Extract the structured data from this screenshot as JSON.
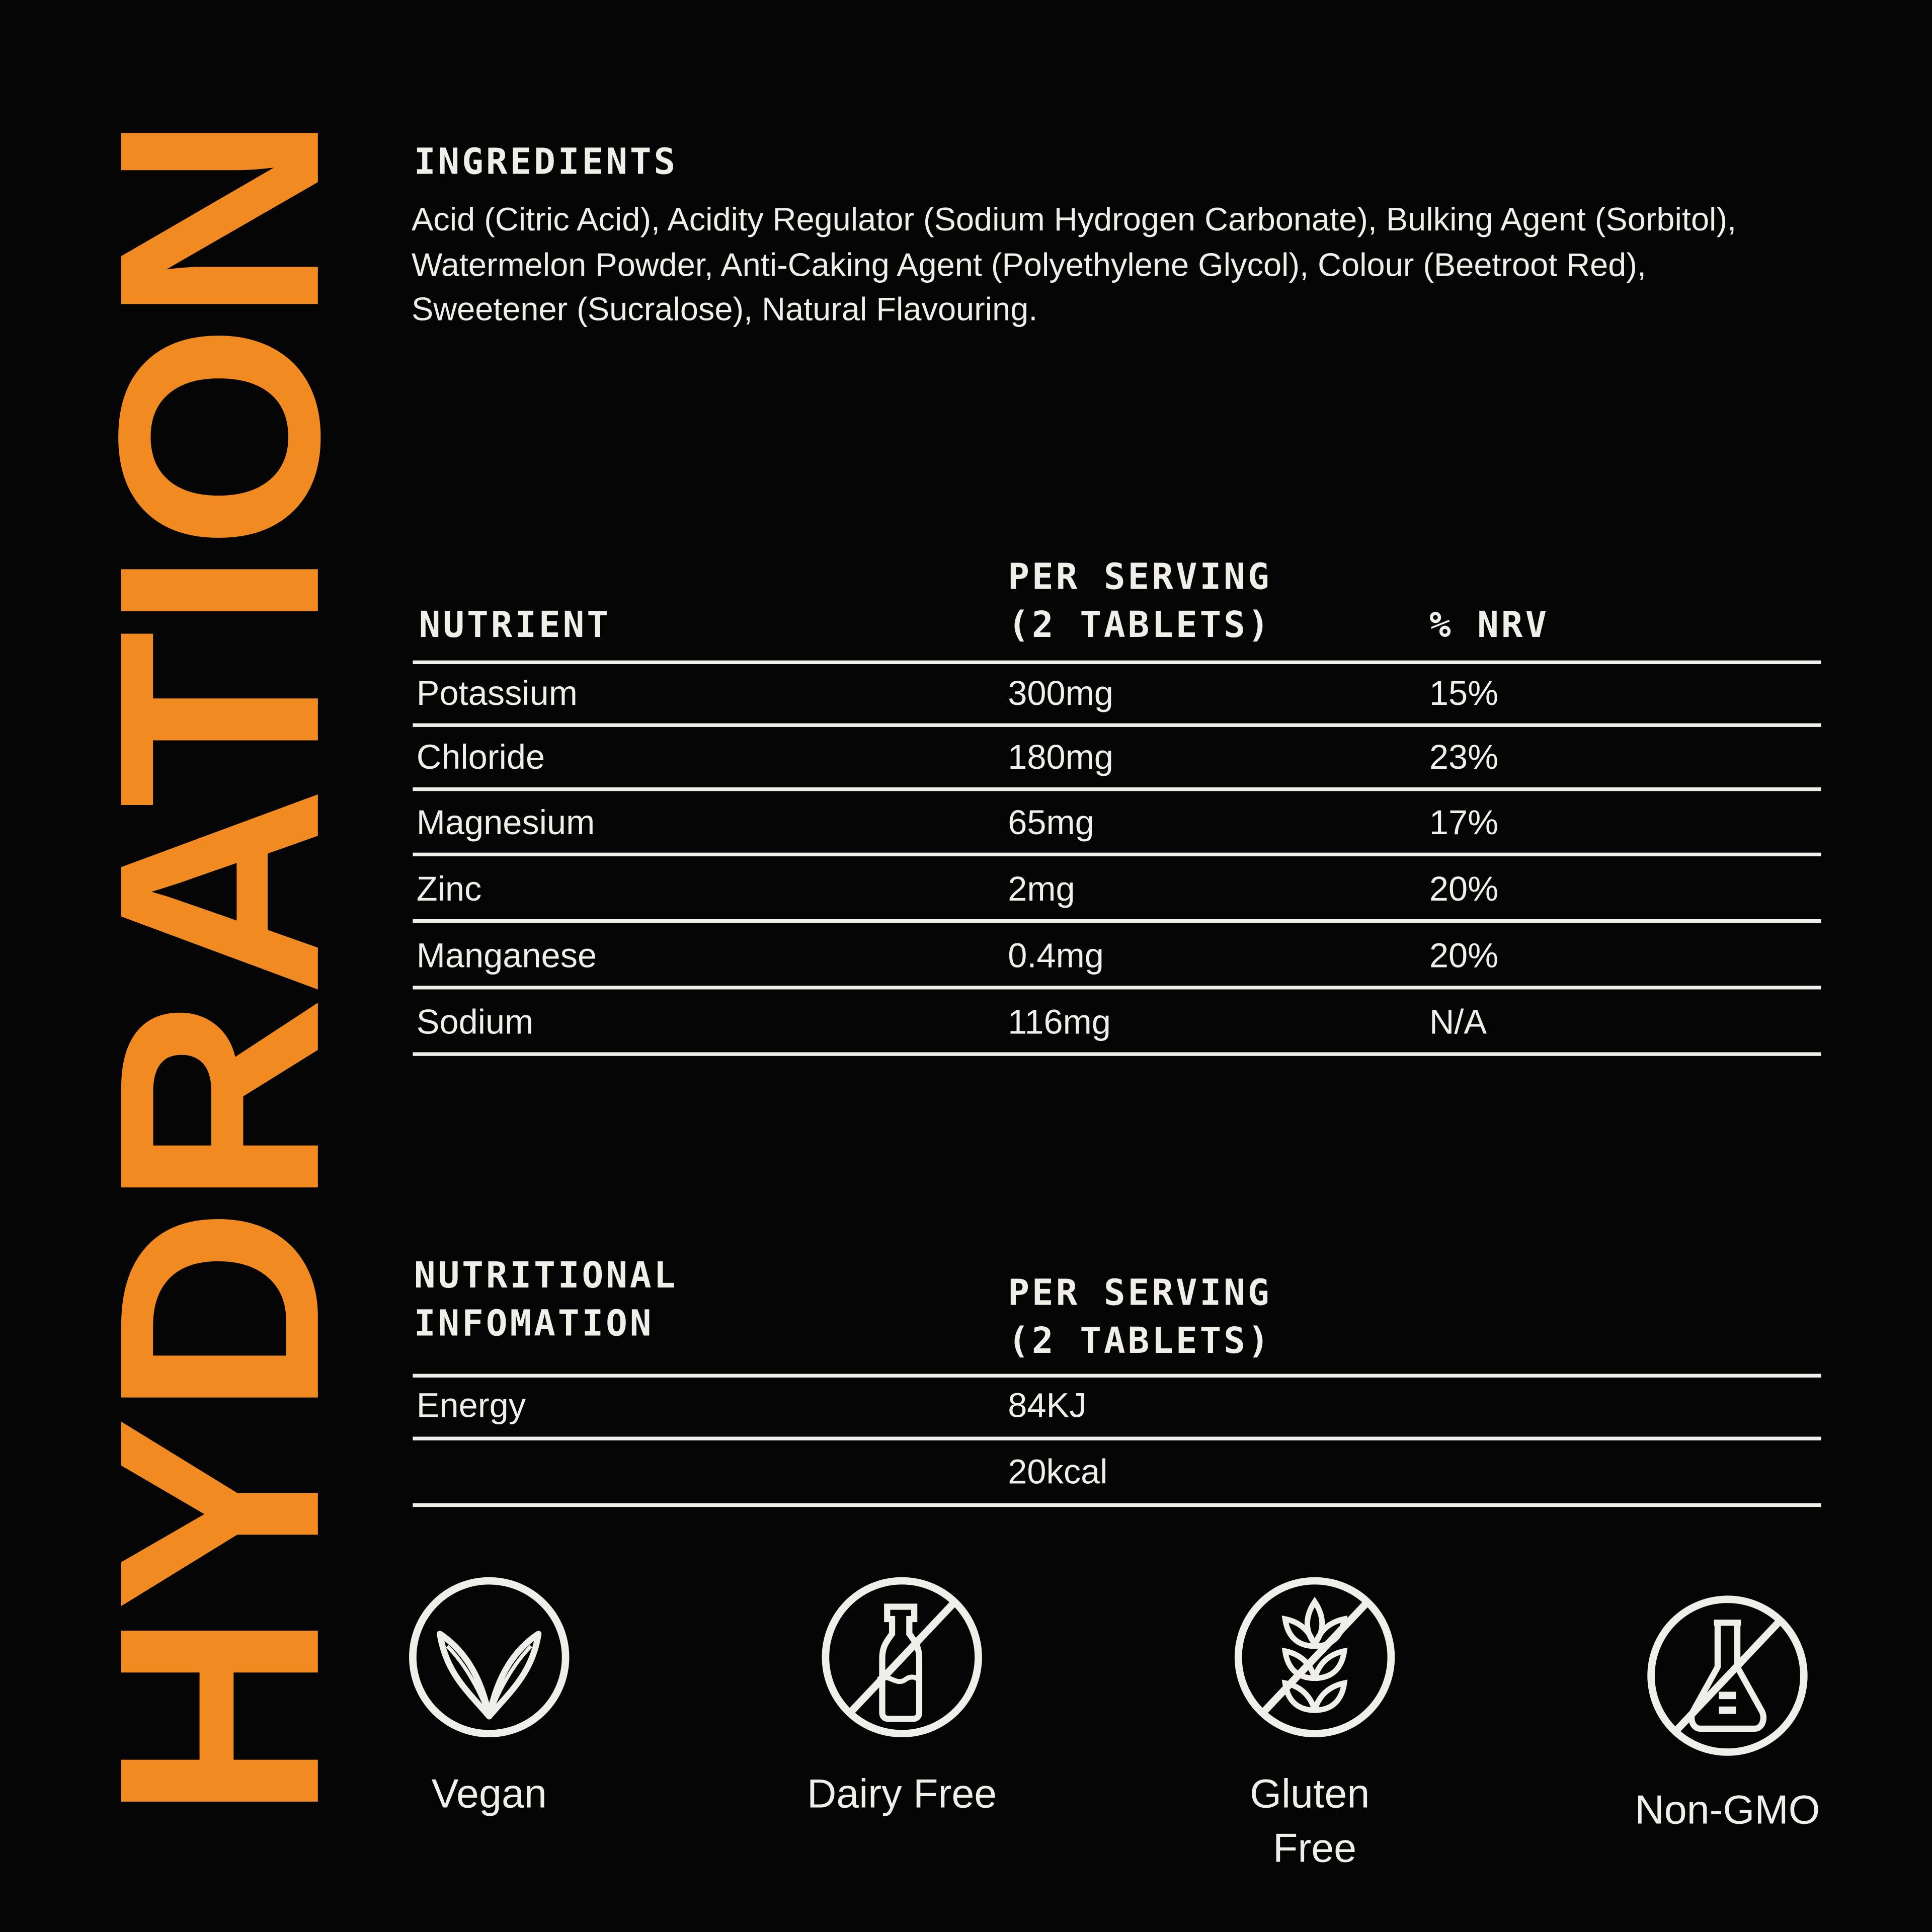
{
  "brand": {
    "vertical_title": "HYDRATION",
    "accent_color": "#F28A22"
  },
  "ingredients": {
    "heading": "INGREDIENTS",
    "text": "Acid (Citric Acid), Acidity Regulator (Sodium Hydrogen Carbonate), Bulking Agent (Sorbitol),  Watermelon Powder, Anti-Caking Agent (Polyethylene Glycol), Colour (Beetroot Red), Sweetener (Sucralose), Natural Flavouring."
  },
  "nutrients_table": {
    "headers": {
      "nutrient": "NUTRIENT",
      "per_serving_1": "PER SERVING",
      "per_serving_2": "(2 TABLETS)",
      "nrv": "% NRV"
    },
    "rows": [
      {
        "nutrient": "Potassium",
        "amount": "300mg",
        "nrv": "15%"
      },
      {
        "nutrient": "Chloride",
        "amount": "180mg",
        "nrv": "23%"
      },
      {
        "nutrient": "Magnesium",
        "amount": "65mg",
        "nrv": "17%"
      },
      {
        "nutrient": "Zinc",
        "amount": "2mg",
        "nrv": "20%"
      },
      {
        "nutrient": "Manganese",
        "amount": "0.4mg",
        "nrv": "20%"
      },
      {
        "nutrient": "Sodium",
        "amount": "116mg",
        "nrv": "N/A"
      }
    ]
  },
  "nutrition_table": {
    "headers": {
      "label_1": "NUTRITIONAL",
      "label_2": "INFOMATION",
      "per_serving_1": "PER SERVING",
      "per_serving_2": "(2 TABLETS)"
    },
    "rows": [
      {
        "label": "Energy",
        "value": "84KJ"
      },
      {
        "label": "",
        "value": "20kcal"
      }
    ]
  },
  "badges": [
    {
      "icon": "vegan-leaf-icon",
      "label": "Vegan"
    },
    {
      "icon": "dairy-free-icon",
      "label": "Dairy Free"
    },
    {
      "icon": "gluten-free-icon",
      "label_1": "Gluten",
      "label_2": "Free"
    },
    {
      "icon": "non-gmo-icon",
      "label": "Non-GMO"
    }
  ]
}
